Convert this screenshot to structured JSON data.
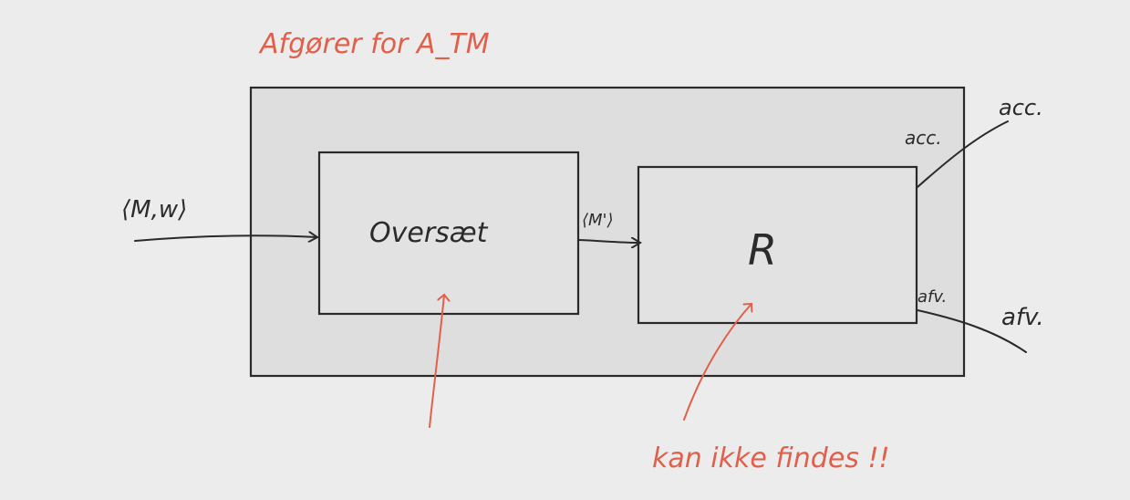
{
  "title": "Afgører for A_TM",
  "input_label": "⟨M,w⟩",
  "oversat_label": "Oversæt",
  "mid_label": "⟨M'⟩",
  "r_label": "R",
  "acc_inner": "acc.",
  "acc_outer": "acc.",
  "afv_inner": "afv.",
  "afv_outer": "afv.",
  "note": "kan ikke findes !!",
  "colors": {
    "ink": "#2b2b2b",
    "red": "#e0604c",
    "background": "#ececec"
  }
}
